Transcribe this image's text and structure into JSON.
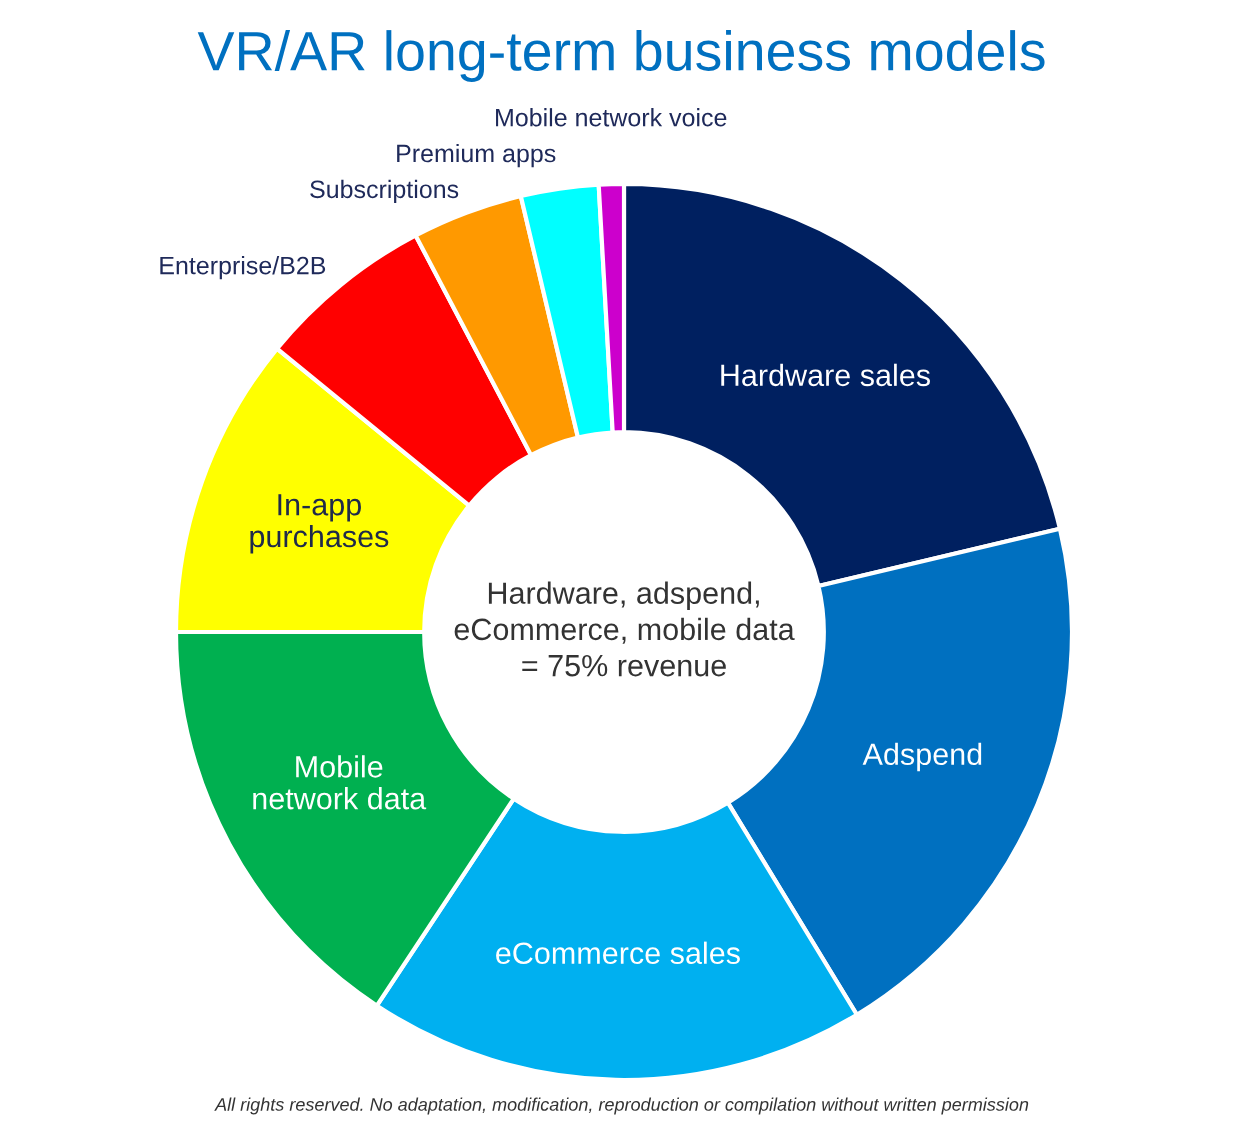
{
  "chart_data": {
    "type": "donut",
    "title": "VR/AR long-term business models",
    "categories": [
      "Hardware sales",
      "Adspend",
      "eCommerce sales",
      "Mobile\nnetwork data",
      "In-app\npurchases",
      "Enterprise/B2B",
      "Subscriptions",
      "Premium apps",
      "Mobile network voice"
    ],
    "values": [
      21.3,
      20.0,
      18.0,
      15.7,
      10.9,
      6.4,
      4.0,
      2.8,
      0.9
    ],
    "colors": [
      "#002060",
      "#0070c0",
      "#00b0f0",
      "#00b050",
      "#ffff00",
      "#ff0000",
      "#ff9900",
      "#00ffff",
      "#cc00cc"
    ],
    "annotations": [
      "Hardware, adspend,\neCommerce, mobile data\n= 75% revenue",
      "All rights reserved. No adaptation, modification, reproduction or compilation without written permission"
    ]
  }
}
